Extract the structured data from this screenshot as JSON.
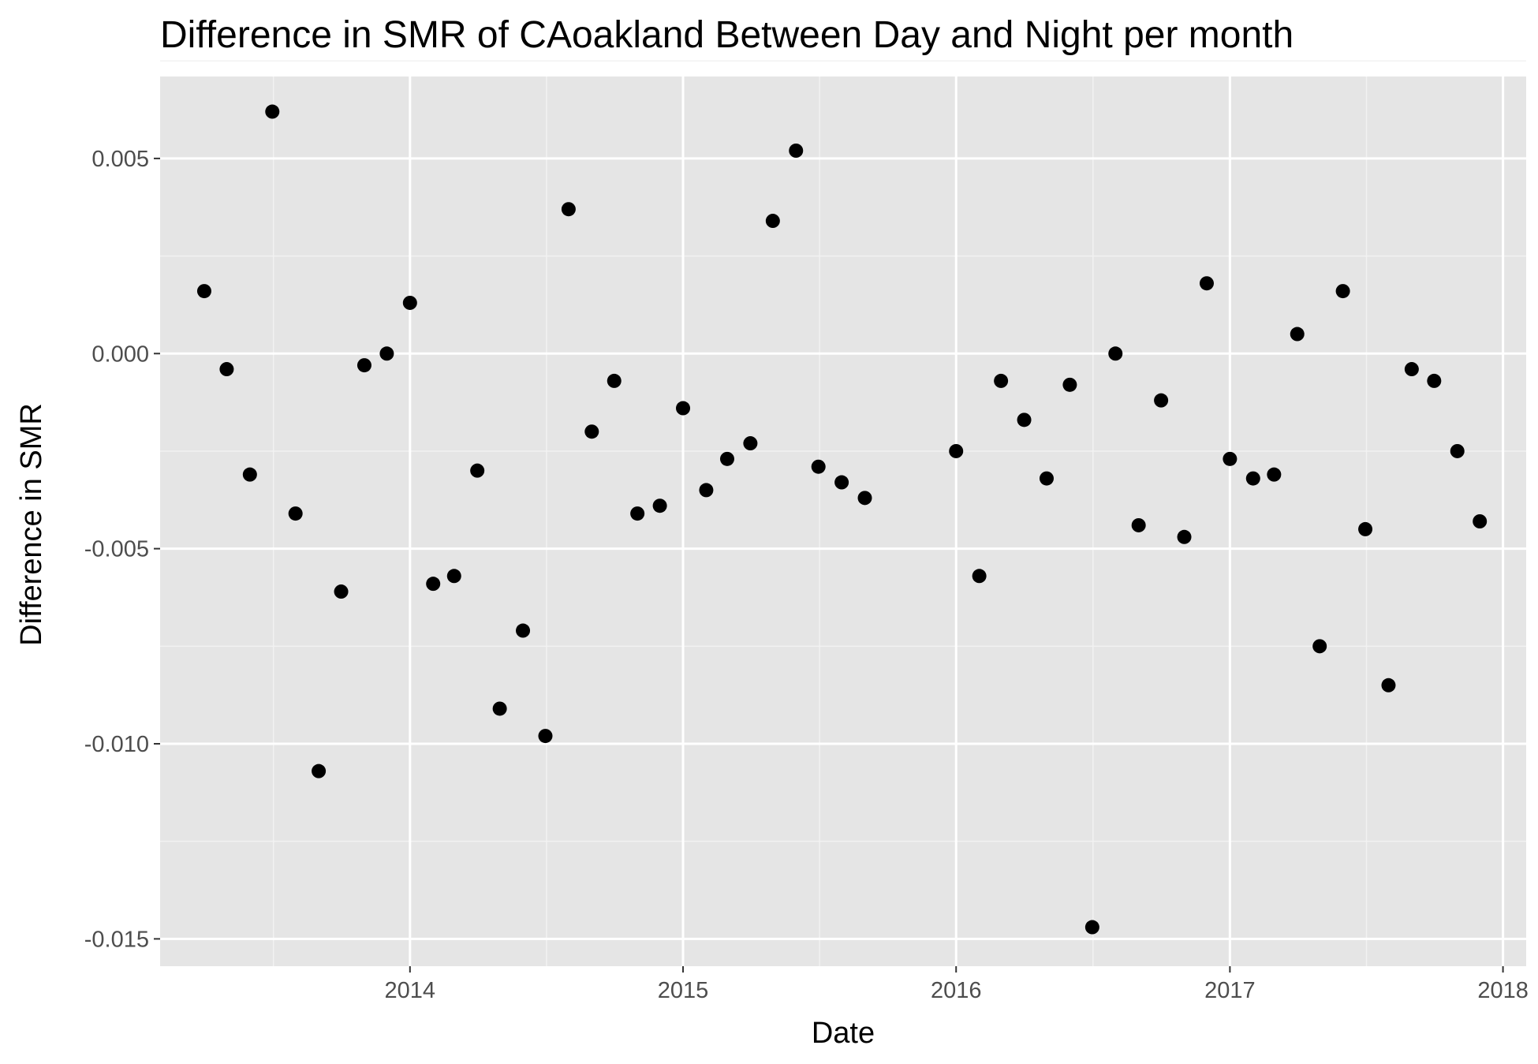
{
  "chart_data": {
    "type": "scatter",
    "title": "Difference in SMR of CAoakland Between Day and Night per month",
    "xlabel": "Date",
    "ylabel": "Difference in SMR",
    "x_axis_type": "date",
    "xlim": [
      "2013-02-01",
      "2018-02-01"
    ],
    "ylim": [
      -0.0157,
      0.0071
    ],
    "x_ticks": [
      "2014-01-01",
      "2015-01-01",
      "2016-01-01",
      "2017-01-01",
      "2018-01-01"
    ],
    "x_tick_labels": [
      "2014",
      "2015",
      "2016",
      "2017",
      "2018"
    ],
    "y_ticks": [
      0.005,
      0.0,
      -0.005,
      -0.01,
      -0.015
    ],
    "y_tick_labels": [
      "0.005",
      "0.000",
      "-0.005",
      "-0.010",
      "-0.015"
    ],
    "y_minor_ticks": [
      0.0075,
      0.0025,
      -0.0025,
      -0.0075,
      -0.0125
    ],
    "grid": true,
    "background": "#e5e5e5",
    "point_color": "#000000",
    "points": [
      {
        "x": "2013-04-01",
        "y": 0.0016
      },
      {
        "x": "2013-05-01",
        "y": -0.0004
      },
      {
        "x": "2013-06-01",
        "y": -0.0031
      },
      {
        "x": "2013-07-01",
        "y": 0.0062
      },
      {
        "x": "2013-08-01",
        "y": -0.0041
      },
      {
        "x": "2013-09-01",
        "y": -0.0107
      },
      {
        "x": "2013-10-01",
        "y": -0.0061
      },
      {
        "x": "2013-11-01",
        "y": -0.0003
      },
      {
        "x": "2013-12-01",
        "y": 0.0
      },
      {
        "x": "2014-01-01",
        "y": 0.0013
      },
      {
        "x": "2014-02-01",
        "y": -0.0059
      },
      {
        "x": "2014-03-01",
        "y": -0.0057
      },
      {
        "x": "2014-04-01",
        "y": -0.003
      },
      {
        "x": "2014-05-01",
        "y": -0.0091
      },
      {
        "x": "2014-06-01",
        "y": -0.0071
      },
      {
        "x": "2014-07-01",
        "y": -0.0098
      },
      {
        "x": "2014-08-01",
        "y": 0.0037
      },
      {
        "x": "2014-09-01",
        "y": -0.002
      },
      {
        "x": "2014-10-01",
        "y": -0.0007
      },
      {
        "x": "2014-11-01",
        "y": -0.0041
      },
      {
        "x": "2014-12-01",
        "y": -0.0039
      },
      {
        "x": "2015-01-01",
        "y": -0.0014
      },
      {
        "x": "2015-02-01",
        "y": -0.0035
      },
      {
        "x": "2015-03-01",
        "y": -0.0027
      },
      {
        "x": "2015-04-01",
        "y": -0.0023
      },
      {
        "x": "2015-05-01",
        "y": 0.0034
      },
      {
        "x": "2015-06-01",
        "y": 0.0052
      },
      {
        "x": "2015-07-01",
        "y": -0.0029
      },
      {
        "x": "2015-08-01",
        "y": -0.0033
      },
      {
        "x": "2015-09-01",
        "y": -0.0037
      },
      {
        "x": "2016-01-01",
        "y": -0.0025
      },
      {
        "x": "2016-02-01",
        "y": -0.0057
      },
      {
        "x": "2016-03-01",
        "y": -0.0007
      },
      {
        "x": "2016-04-01",
        "y": -0.0017
      },
      {
        "x": "2016-05-01",
        "y": -0.0032
      },
      {
        "x": "2016-06-01",
        "y": -0.0008
      },
      {
        "x": "2016-07-01",
        "y": -0.0147
      },
      {
        "x": "2016-08-01",
        "y": 0.0
      },
      {
        "x": "2016-09-01",
        "y": -0.0044
      },
      {
        "x": "2016-10-01",
        "y": -0.0012
      },
      {
        "x": "2016-11-01",
        "y": -0.0047
      },
      {
        "x": "2016-12-01",
        "y": 0.0018
      },
      {
        "x": "2017-01-01",
        "y": -0.0027
      },
      {
        "x": "2017-02-01",
        "y": -0.0032
      },
      {
        "x": "2017-03-01",
        "y": -0.0031
      },
      {
        "x": "2017-04-01",
        "y": 0.0005
      },
      {
        "x": "2017-05-01",
        "y": -0.0075
      },
      {
        "x": "2017-06-01",
        "y": 0.0016
      },
      {
        "x": "2017-07-01",
        "y": -0.0045
      },
      {
        "x": "2017-08-01",
        "y": -0.0085
      },
      {
        "x": "2017-09-01",
        "y": -0.0004
      },
      {
        "x": "2017-10-01",
        "y": -0.0007
      },
      {
        "x": "2017-11-01",
        "y": -0.0025
      },
      {
        "x": "2017-12-01",
        "y": -0.0043
      }
    ]
  }
}
